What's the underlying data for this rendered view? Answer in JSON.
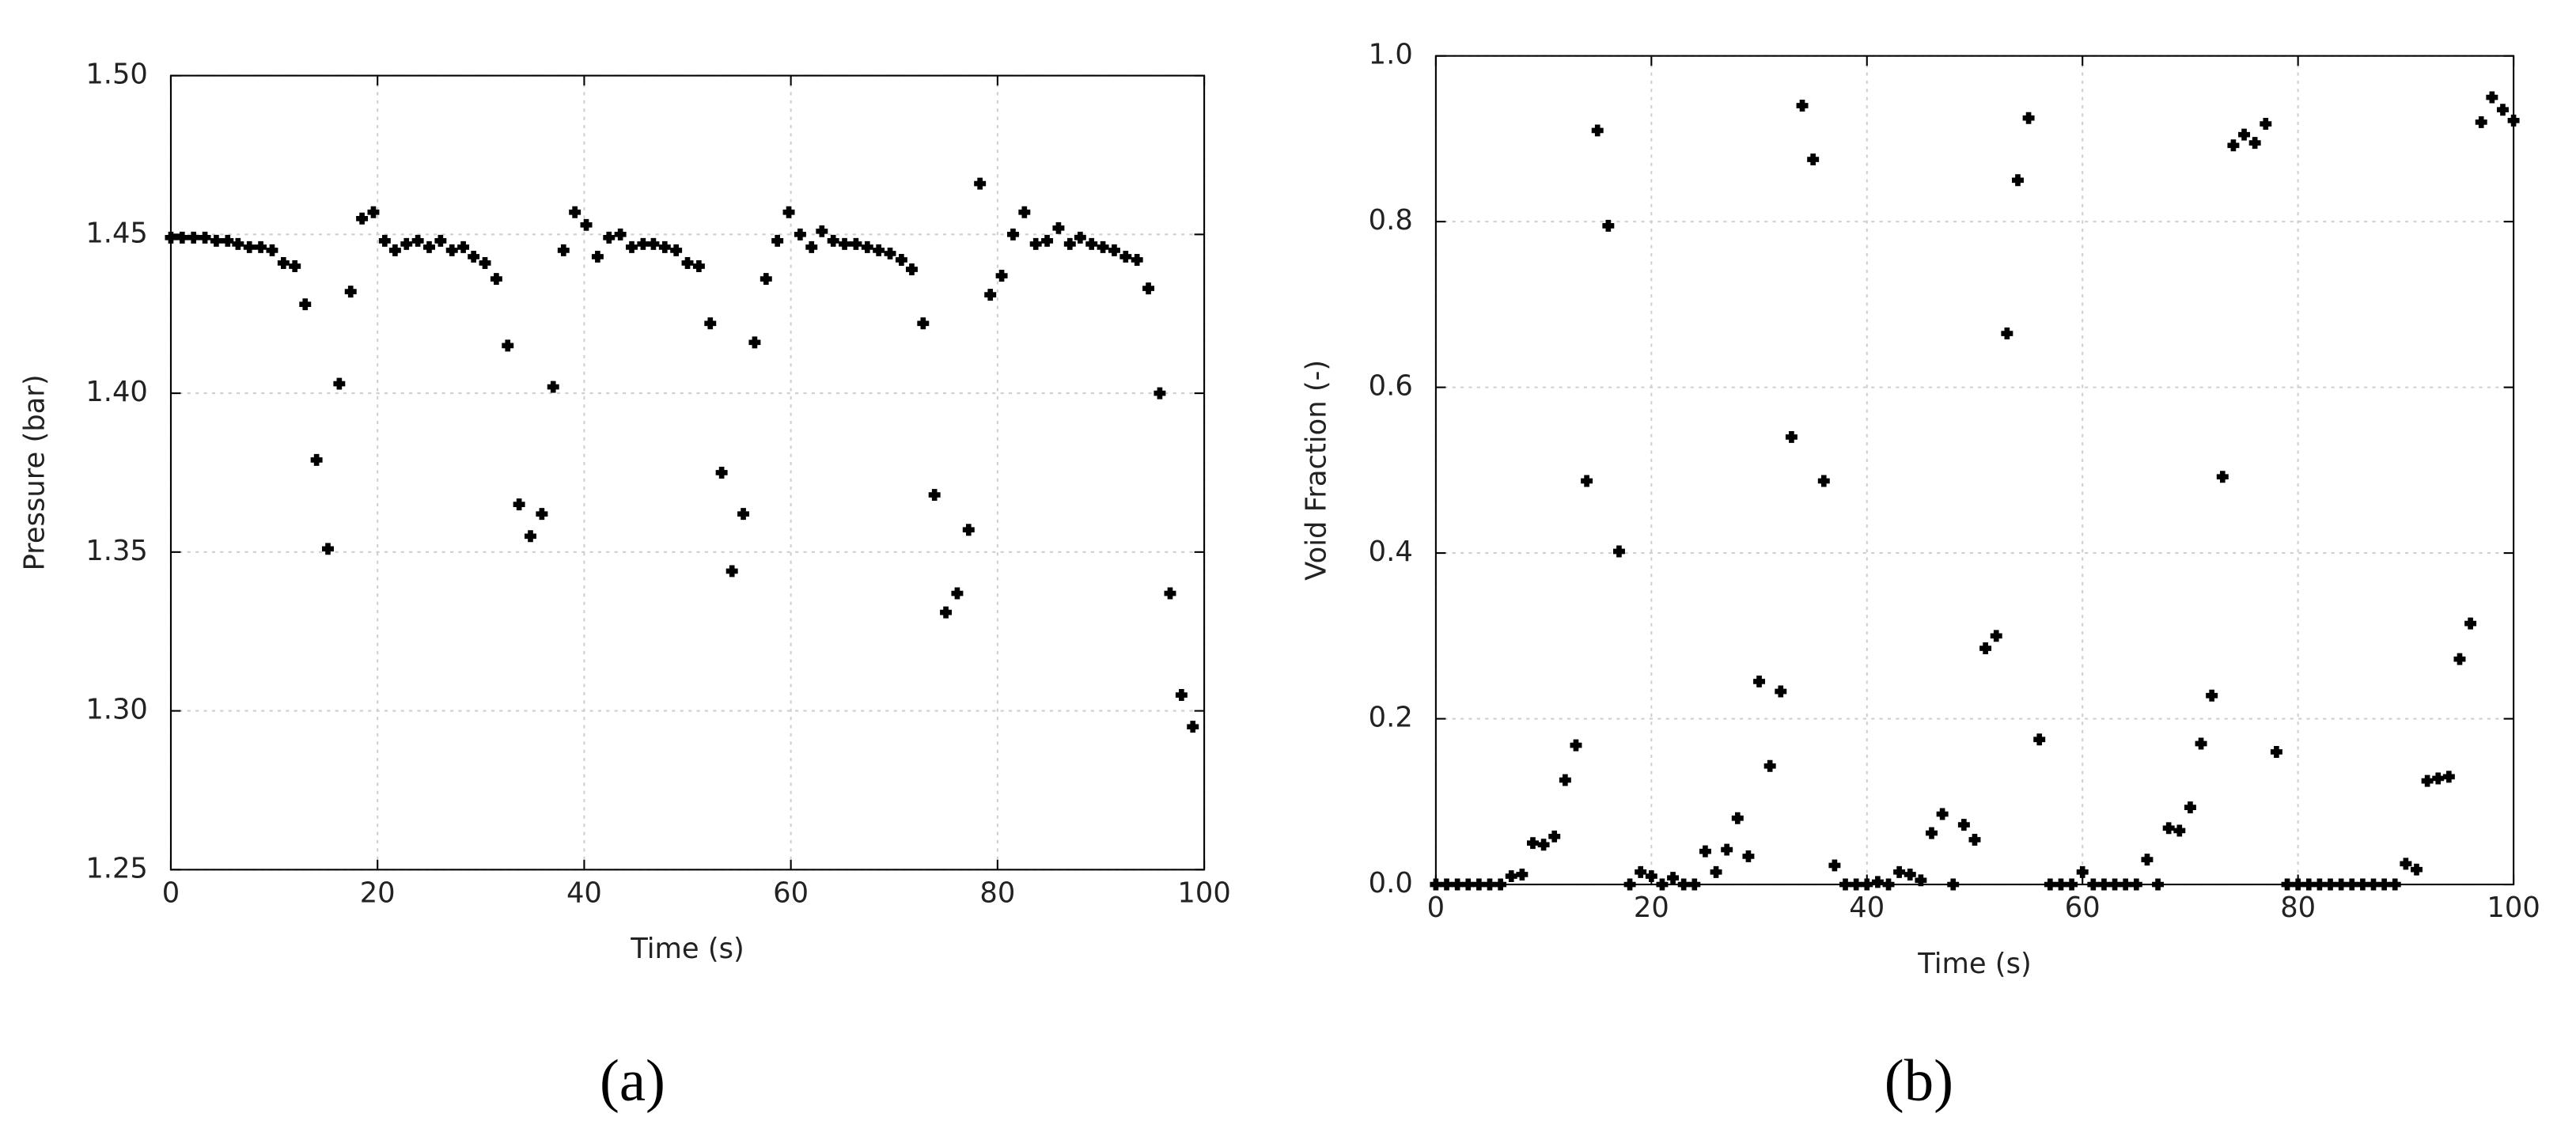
{
  "chart_data": [
    {
      "type": "scatter",
      "panel_label": "(a)",
      "xlabel": "Time (s)",
      "ylabel": "Pressure (bar)",
      "xlim": [
        0,
        100
      ],
      "ylim": [
        1.25,
        1.5
      ],
      "xticks": [
        0,
        20,
        40,
        60,
        80,
        100
      ],
      "yticks": [
        1.25,
        {
          "value": 1.3,
          "label": "1.30"
        },
        1.35,
        {
          "value": 1.4,
          "label": "1.40"
        },
        1.45,
        {
          "value": 1.5,
          "label": "1.50"
        }
      ],
      "grid": true,
      "color": "#000000",
      "series": [
        {
          "x": [
            0,
            1.1,
            2.2,
            3.3,
            4.4,
            5.5,
            6.5,
            7.6,
            8.7,
            9.8,
            10.9,
            12,
            13,
            14.1,
            15.2,
            16.3,
            17.4,
            18.5,
            19.6,
            20.7,
            21.7,
            22.8,
            23.9,
            25,
            26.1,
            27.2,
            28.3,
            29.3,
            30.4,
            31.5,
            32.6,
            33.7,
            34.8,
            35.9,
            37,
            38,
            39.1,
            40.2,
            41.3,
            42.4,
            43.5,
            44.6,
            45.7,
            46.7,
            47.8,
            48.9,
            50,
            51.1,
            52.2,
            53.3,
            54.3,
            55.4,
            56.5,
            57.6,
            58.7,
            59.8,
            60.9,
            62,
            63,
            64.1,
            65.2,
            66.3,
            67.4,
            68.5,
            69.6,
            70.7,
            71.7,
            72.8,
            73.9,
            75,
            76.1,
            77.2,
            78.3,
            79.3,
            80.4,
            81.5,
            82.6,
            83.7,
            84.8,
            85.9,
            87,
            88,
            89.1,
            90.2,
            91.3,
            92.4,
            93.5,
            94.6,
            95.7,
            96.7,
            97.8,
            98.9
          ],
          "values": [
            1.449,
            1.449,
            1.449,
            1.449,
            1.448,
            1.448,
            1.447,
            1.446,
            1.446,
            1.445,
            1.441,
            1.44,
            1.428,
            1.379,
            1.351,
            1.403,
            1.432,
            1.455,
            1.457,
            1.448,
            1.445,
            1.447,
            1.448,
            1.446,
            1.448,
            1.445,
            1.446,
            1.443,
            1.441,
            1.436,
            1.415,
            1.365,
            1.355,
            1.362,
            1.402,
            1.445,
            1.457,
            1.453,
            1.443,
            1.449,
            1.45,
            1.446,
            1.447,
            1.447,
            1.446,
            1.445,
            1.441,
            1.44,
            1.422,
            1.375,
            1.344,
            1.362,
            1.416,
            1.436,
            1.448,
            1.457,
            1.45,
            1.446,
            1.451,
            1.448,
            1.447,
            1.447,
            1.446,
            1.445,
            1.444,
            1.442,
            1.439,
            1.422,
            1.368,
            1.331,
            1.337,
            1.357,
            1.466,
            1.431,
            1.437,
            1.45,
            1.457,
            1.447,
            1.448,
            1.452,
            1.447,
            1.449,
            1.447,
            1.446,
            1.445,
            1.443,
            1.442,
            1.433,
            1.4,
            1.337,
            1.305,
            1.295
          ]
        }
      ]
    },
    {
      "type": "scatter",
      "panel_label": "(b)",
      "xlabel": "Time (s)",
      "ylabel": "Void Fraction (-)",
      "xlim": [
        0,
        100
      ],
      "ylim": [
        0,
        1
      ],
      "xticks": [
        0,
        20,
        40,
        60,
        80,
        100
      ],
      "yticks": [
        {
          "value": 0,
          "label": "0.0"
        },
        0.2,
        0.4,
        0.6,
        0.8,
        {
          "value": 1,
          "label": "1.0"
        }
      ],
      "grid": true,
      "color": "#000000",
      "series": [
        {
          "x": [
            0,
            1,
            2,
            3,
            4,
            5,
            6,
            7,
            8,
            9,
            10,
            11,
            12,
            13,
            14,
            15,
            16,
            17,
            18,
            19,
            20,
            21,
            22,
            23,
            24,
            25,
            26,
            27,
            28,
            29,
            30,
            31,
            32,
            33,
            34,
            35,
            36,
            37,
            38,
            39,
            40,
            41,
            42,
            43,
            44,
            45,
            46,
            47,
            48,
            49,
            50,
            51,
            52,
            53,
            54,
            55,
            56,
            57,
            58,
            59,
            60,
            61,
            62,
            63,
            64,
            65,
            66,
            67,
            68,
            69,
            70,
            71,
            72,
            73,
            74,
            75,
            76,
            77,
            78,
            79,
            80,
            81,
            82,
            83,
            84,
            85,
            86,
            87,
            88,
            89,
            90,
            91,
            92,
            93,
            94,
            95,
            96,
            97,
            98,
            99,
            100
          ],
          "values": [
            0,
            0,
            0,
            0,
            0,
            0,
            0,
            0.01,
            0.012,
            0.05,
            0.048,
            0.058,
            0.126,
            0.168,
            0.487,
            0.91,
            0.795,
            0.402,
            0,
            0.015,
            0.01,
            0,
            0.008,
            0,
            0,
            0.04,
            0.015,
            0.042,
            0.08,
            0.034,
            0.245,
            0.143,
            0.233,
            0.54,
            0.94,
            0.875,
            0.487,
            0.023,
            0,
            0,
            0,
            0.003,
            0,
            0.015,
            0.012,
            0.005,
            0.062,
            0.085,
            0,
            0.072,
            0.054,
            0.285,
            0.3,
            0.665,
            0.85,
            0.925,
            0.175,
            0,
            0,
            0,
            0.015,
            0,
            0,
            0,
            0,
            0,
            0.03,
            0,
            0.068,
            0.065,
            0.093,
            0.17,
            0.228,
            0.492,
            0.892,
            0.905,
            0.895,
            0.918,
            0.16,
            0,
            0,
            0,
            0,
            0,
            0,
            0,
            0,
            0,
            0,
            0,
            0.025,
            0.018,
            0.125,
            0.128,
            0.13,
            0.272,
            0.315,
            0.92,
            0.95,
            0.935,
            0.922
          ]
        }
      ]
    }
  ]
}
